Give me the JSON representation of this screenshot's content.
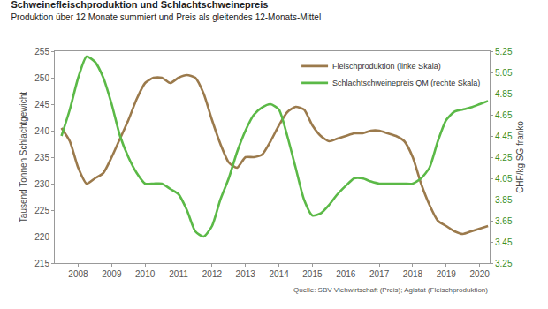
{
  "chart_data": {
    "type": "line",
    "title": "Schweinefleischproduktion und Schlachtschweinepreis",
    "subtitle": "Produktion über 12 Monate summiert und Preis als gleitendes 12-Monats-Mittel",
    "y_label": "Tausend Tonnen Schlachtgewicht",
    "y2_label": "CHF/kg SG franko",
    "source": "Quelle: SBV Viehwirtschaft (Preis); Agistat (Fleischproduktion)",
    "x": [
      2008,
      2008.25,
      2008.5,
      2008.75,
      2009,
      2009.25,
      2009.5,
      2009.75,
      2010,
      2010.25,
      2010.5,
      2010.75,
      2011,
      2011.25,
      2011.5,
      2011.75,
      2012,
      2012.25,
      2012.5,
      2012.75,
      2013,
      2013.25,
      2013.5,
      2013.75,
      2014,
      2014.25,
      2014.5,
      2014.75,
      2015,
      2015.25,
      2015.5,
      2015.75,
      2016,
      2016.25,
      2016.5,
      2016.75,
      2017,
      2017.25,
      2017.5,
      2017.75,
      2018,
      2018.25,
      2018.5,
      2018.75,
      2019,
      2019.25,
      2019.5,
      2019.75,
      2020,
      2020.25,
      2020.5,
      2020.75
    ],
    "series": [
      {
        "name": "Fleischproduktion (linke Skala)",
        "color": "#9b7a4c",
        "axis": "y",
        "values": [
          240.5,
          238,
          233,
          230,
          231,
          232,
          235,
          238.5,
          242,
          246,
          249,
          250,
          250,
          249,
          250,
          250.5,
          250,
          247,
          242,
          237.5,
          234,
          233,
          235,
          235,
          235.5,
          238,
          241,
          243.5,
          244.5,
          244,
          241,
          239,
          238,
          238.5,
          239,
          239.5,
          239.5,
          240,
          240,
          239.5,
          239,
          238,
          235,
          230,
          226,
          223,
          222,
          221,
          220.5,
          221,
          221.5,
          222
        ]
      },
      {
        "name": "Schlachtschweinepreis QM (rechte Skala)",
        "color": "#5bb947",
        "axis": "y2",
        "values": [
          4.45,
          4.7,
          5.0,
          5.2,
          5.15,
          5.0,
          4.75,
          4.45,
          4.25,
          4.1,
          4.0,
          4.0,
          4.0,
          3.95,
          3.9,
          3.75,
          3.55,
          3.5,
          3.6,
          3.85,
          4.05,
          4.3,
          4.5,
          4.65,
          4.72,
          4.75,
          4.7,
          4.45,
          4.15,
          3.85,
          3.7,
          3.72,
          3.8,
          3.9,
          3.98,
          4.05,
          4.05,
          4.02,
          4.0,
          4.0,
          4.0,
          4.0,
          4.0,
          4.05,
          4.15,
          4.4,
          4.6,
          4.68,
          4.7,
          4.72,
          4.75,
          4.78
        ]
      }
    ],
    "xlim": [
      2007.8,
      2020.8
    ],
    "xticks": [
      {
        "value": 2008.5,
        "label": "2008"
      },
      {
        "value": 2009.5,
        "label": "2009"
      },
      {
        "value": 2010.5,
        "label": "2010"
      },
      {
        "value": 2011.5,
        "label": "2011"
      },
      {
        "value": 2012.5,
        "label": "2012"
      },
      {
        "value": 2013.5,
        "label": "2013"
      },
      {
        "value": 2014.5,
        "label": "2014"
      },
      {
        "value": 2015.5,
        "label": "2015"
      },
      {
        "value": 2016.5,
        "label": "2016"
      },
      {
        "value": 2017.5,
        "label": "2017"
      },
      {
        "value": 2018.5,
        "label": "2018"
      },
      {
        "value": 2019.5,
        "label": "2019"
      },
      {
        "value": 2020.5,
        "label": "2020"
      }
    ],
    "ylim": [
      215,
      255
    ],
    "yticks": [
      215,
      220,
      225,
      230,
      235,
      240,
      245,
      250,
      255
    ],
    "y2lim": [
      3.25,
      5.25
    ],
    "y2ticks": [
      3.25,
      3.45,
      3.65,
      3.85,
      4.05,
      4.25,
      4.45,
      4.65,
      4.85,
      5.05,
      5.25
    ],
    "grid": false,
    "legend": "upper right"
  }
}
